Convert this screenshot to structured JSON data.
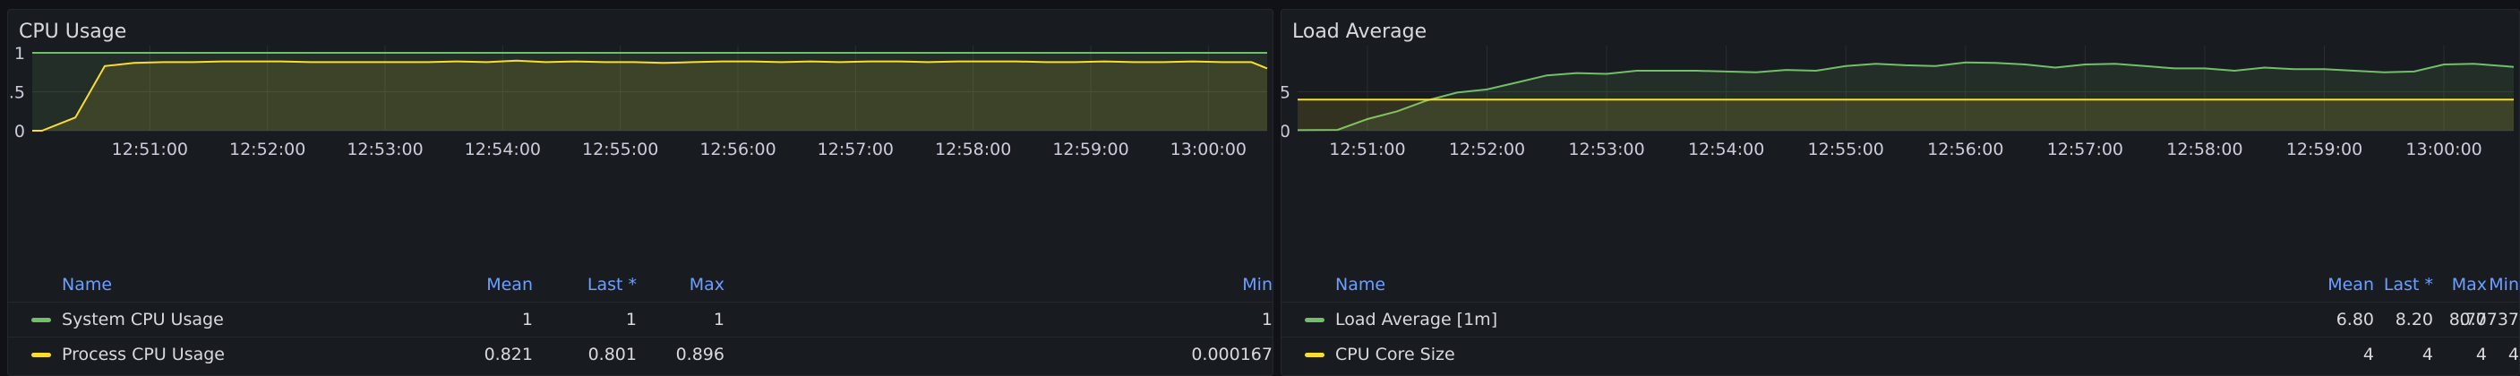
{
  "panels": [
    {
      "title": "CPU Usage",
      "legend": {
        "headers": {
          "name": "Name",
          "mean": "Mean",
          "last": "Last *",
          "max": "Max",
          "min": "Min"
        },
        "rows": [
          {
            "name": "System CPU Usage",
            "mean": "1",
            "last": "1",
            "max": "1",
            "min": "1",
            "color": "#73bf69"
          },
          {
            "name": "Process CPU Usage",
            "mean": "0.821",
            "last": "0.801",
            "max": "0.896",
            "min": "0.000167",
            "color": "#fade2a"
          }
        ]
      }
    },
    {
      "title": "Load Average",
      "legend": {
        "headers": {
          "name": "Name",
          "mean": "Mean",
          "last": "Last *",
          "max": "Max",
          "min": "Min"
        },
        "rows": [
          {
            "name": "Load Average [1m]",
            "mean": "6.80",
            "last": "8.20",
            "max": "8.77",
            "min": "0.0737",
            "color": "#73bf69"
          },
          {
            "name": "CPU Core Size",
            "mean": "4",
            "last": "4",
            "max": "4",
            "min": "4",
            "color": "#fade2a"
          }
        ]
      }
    }
  ],
  "chart_data": [
    {
      "type": "area",
      "title": "CPU Usage",
      "x_ticks": [
        "12:51:00",
        "12:52:00",
        "12:53:00",
        "12:54:00",
        "12:55:00",
        "12:56:00",
        "12:57:00",
        "12:58:00",
        "12:59:00",
        "13:00:00"
      ],
      "x_range": [
        "12:50:00",
        "13:00:30"
      ],
      "y_ticks": [
        "0",
        "0.5",
        "1"
      ],
      "ylim": [
        0,
        1
      ],
      "grid": true,
      "legend_placement": "bottom",
      "series": [
        {
          "name": "System CPU Usage",
          "color": "#73bf69",
          "x": [
            "12:50:00",
            "13:00:30"
          ],
          "values": [
            1,
            1
          ]
        },
        {
          "name": "Process CPU Usage",
          "color": "#fade2a",
          "x": [
            "12:50:00",
            "12:50:05",
            "12:50:22",
            "12:50:37",
            "12:50:52",
            "12:51:07",
            "12:51:22",
            "12:51:37",
            "12:51:52",
            "12:52:07",
            "12:52:22",
            "12:52:37",
            "12:52:52",
            "12:53:07",
            "12:53:22",
            "12:53:37",
            "12:53:52",
            "12:54:07",
            "12:54:22",
            "12:54:37",
            "12:54:52",
            "12:55:07",
            "12:55:22",
            "12:55:37",
            "12:55:52",
            "12:56:07",
            "12:56:22",
            "12:56:37",
            "12:56:52",
            "12:57:07",
            "12:57:22",
            "12:57:37",
            "12:57:52",
            "12:58:07",
            "12:58:22",
            "12:58:37",
            "12:58:52",
            "12:59:07",
            "12:59:22",
            "12:59:37",
            "12:59:52",
            "13:00:07",
            "13:00:22",
            "13:00:30"
          ],
          "values": [
            0,
            0.0002,
            0.17,
            0.83,
            0.87,
            0.88,
            0.88,
            0.89,
            0.89,
            0.89,
            0.88,
            0.88,
            0.88,
            0.88,
            0.88,
            0.89,
            0.88,
            0.9,
            0.88,
            0.89,
            0.88,
            0.88,
            0.87,
            0.88,
            0.89,
            0.89,
            0.88,
            0.89,
            0.88,
            0.89,
            0.89,
            0.88,
            0.89,
            0.89,
            0.89,
            0.88,
            0.88,
            0.89,
            0.88,
            0.88,
            0.89,
            0.88,
            0.88,
            0.8
          ]
        }
      ]
    },
    {
      "type": "area",
      "title": "Load Average",
      "x_ticks": [
        "12:51:00",
        "12:52:00",
        "12:53:00",
        "12:54:00",
        "12:55:00",
        "12:56:00",
        "12:57:00",
        "12:58:00",
        "12:59:00",
        "13:00:00"
      ],
      "x_range": [
        "12:50:25",
        "13:00:35"
      ],
      "y_ticks": [
        "0",
        "5"
      ],
      "ylim": [
        0,
        10
      ],
      "grid": true,
      "legend_placement": "bottom",
      "series": [
        {
          "name": "Load Average [1m]",
          "color": "#73bf69",
          "x": [
            "12:50:25",
            "12:50:45",
            "12:51:00",
            "12:51:15",
            "12:51:30",
            "12:51:45",
            "12:52:00",
            "12:52:15",
            "12:52:30",
            "12:52:45",
            "12:53:00",
            "12:53:15",
            "12:53:30",
            "12:53:45",
            "12:54:00",
            "12:54:15",
            "12:54:30",
            "12:54:45",
            "12:55:00",
            "12:55:15",
            "12:55:30",
            "12:55:45",
            "12:56:00",
            "12:56:15",
            "12:56:30",
            "12:56:45",
            "12:57:00",
            "12:57:15",
            "12:57:30",
            "12:57:45",
            "12:58:00",
            "12:58:15",
            "12:58:30",
            "12:58:45",
            "12:59:00",
            "12:59:15",
            "12:59:30",
            "12:59:45",
            "13:00:00",
            "13:00:15",
            "13:00:35"
          ],
          "values": [
            0.07,
            0.1,
            1.5,
            2.5,
            3.9,
            4.9,
            5.3,
            6.2,
            7.1,
            7.4,
            7.3,
            7.7,
            7.7,
            7.7,
            7.6,
            7.5,
            7.8,
            7.7,
            8.3,
            8.6,
            8.4,
            8.3,
            8.77,
            8.7,
            8.5,
            8.1,
            8.5,
            8.6,
            8.3,
            8.0,
            8.0,
            7.7,
            8.1,
            7.9,
            7.9,
            7.7,
            7.5,
            7.6,
            8.5,
            8.6,
            8.2
          ]
        },
        {
          "name": "CPU Core Size",
          "color": "#fade2a",
          "x": [
            "12:50:25",
            "13:00:35"
          ],
          "values": [
            4,
            4
          ]
        }
      ]
    }
  ]
}
